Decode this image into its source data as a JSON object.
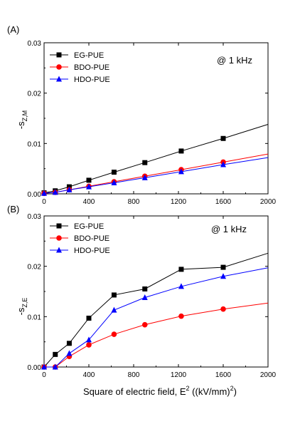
{
  "chart_data": [
    {
      "type": "line",
      "panel_label": "(A)",
      "annotation": "@ 1 kHz",
      "ylabel_main": "-s",
      "ylabel_sub": "Z,M",
      "xlim": [
        0,
        2000
      ],
      "ylim": [
        0,
        0.03
      ],
      "xticks": [
        "0",
        "400",
        "800",
        "1200",
        "1600",
        "2000"
      ],
      "yticks": [
        "0.00",
        "0.01",
        "0.02",
        "0.03"
      ],
      "grid": false,
      "legend_position": "top-left",
      "series": [
        {
          "name": "EG-PUE",
          "color": "#000000",
          "marker": "square",
          "x": [
            0,
            100,
            225,
            400,
            625,
            900,
            1225,
            1600
          ],
          "y": [
            0.0002,
            0.0006,
            0.0014,
            0.0027,
            0.0043,
            0.0062,
            0.0085,
            0.011
          ],
          "trend_y": 0.0138
        },
        {
          "name": "BDO-PUE",
          "color": "#ff0000",
          "marker": "circle",
          "x": [
            0,
            100,
            225,
            400,
            625,
            900,
            1225,
            1600
          ],
          "y": [
            0.0001,
            0.0003,
            0.0008,
            0.0015,
            0.0024,
            0.0035,
            0.0048,
            0.0063
          ],
          "trend_y": 0.0079
        },
        {
          "name": "HDO-PUE",
          "color": "#0000ff",
          "marker": "triangle",
          "x": [
            0,
            100,
            225,
            400,
            625,
            900,
            1225,
            1600
          ],
          "y": [
            0.0001,
            0.0003,
            0.0008,
            0.0014,
            0.0022,
            0.0032,
            0.0044,
            0.0058
          ],
          "trend_y": 0.0072
        }
      ]
    },
    {
      "type": "line",
      "panel_label": "(B)",
      "annotation": "@ 1 kHz",
      "ylabel_main": "-s",
      "ylabel_sub": "Z,E",
      "xlabel_main": "Square of electric field, E",
      "xlabel_sup": "2",
      "xlabel_unit_main": " ((kV/mm)",
      "xlabel_unit_sup": "2",
      "xlabel_unit_end": ")",
      "xlim": [
        0,
        2000
      ],
      "ylim": [
        0,
        0.03
      ],
      "xticks": [
        "0",
        "400",
        "800",
        "1200",
        "1600",
        "2000"
      ],
      "yticks": [
        "0.00",
        "0.01",
        "0.02",
        "0.03"
      ],
      "grid": false,
      "legend_position": "top-left",
      "series": [
        {
          "name": "EG-PUE",
          "color": "#000000",
          "marker": "square",
          "x": [
            0,
            100,
            225,
            400,
            625,
            900,
            1225,
            1600
          ],
          "y": [
            0.0,
            0.0025,
            0.0047,
            0.0097,
            0.0143,
            0.0155,
            0.0194,
            0.0198
          ],
          "trend_y": 0.0226
        },
        {
          "name": "BDO-PUE",
          "color": "#ff0000",
          "marker": "circle",
          "x": [
            0,
            100,
            225,
            400,
            625,
            900,
            1225,
            1600
          ],
          "y": [
            0.0,
            0.0,
            0.0021,
            0.0044,
            0.0065,
            0.0084,
            0.0101,
            0.0115
          ],
          "trend_y": 0.0127
        },
        {
          "name": "HDO-PUE",
          "color": "#0000ff",
          "marker": "triangle",
          "x": [
            0,
            100,
            225,
            400,
            625,
            900,
            1225,
            1600
          ],
          "y": [
            0.0,
            0.0,
            0.0027,
            0.0054,
            0.0113,
            0.0138,
            0.016,
            0.018
          ],
          "trend_y": 0.0197
        }
      ]
    }
  ]
}
